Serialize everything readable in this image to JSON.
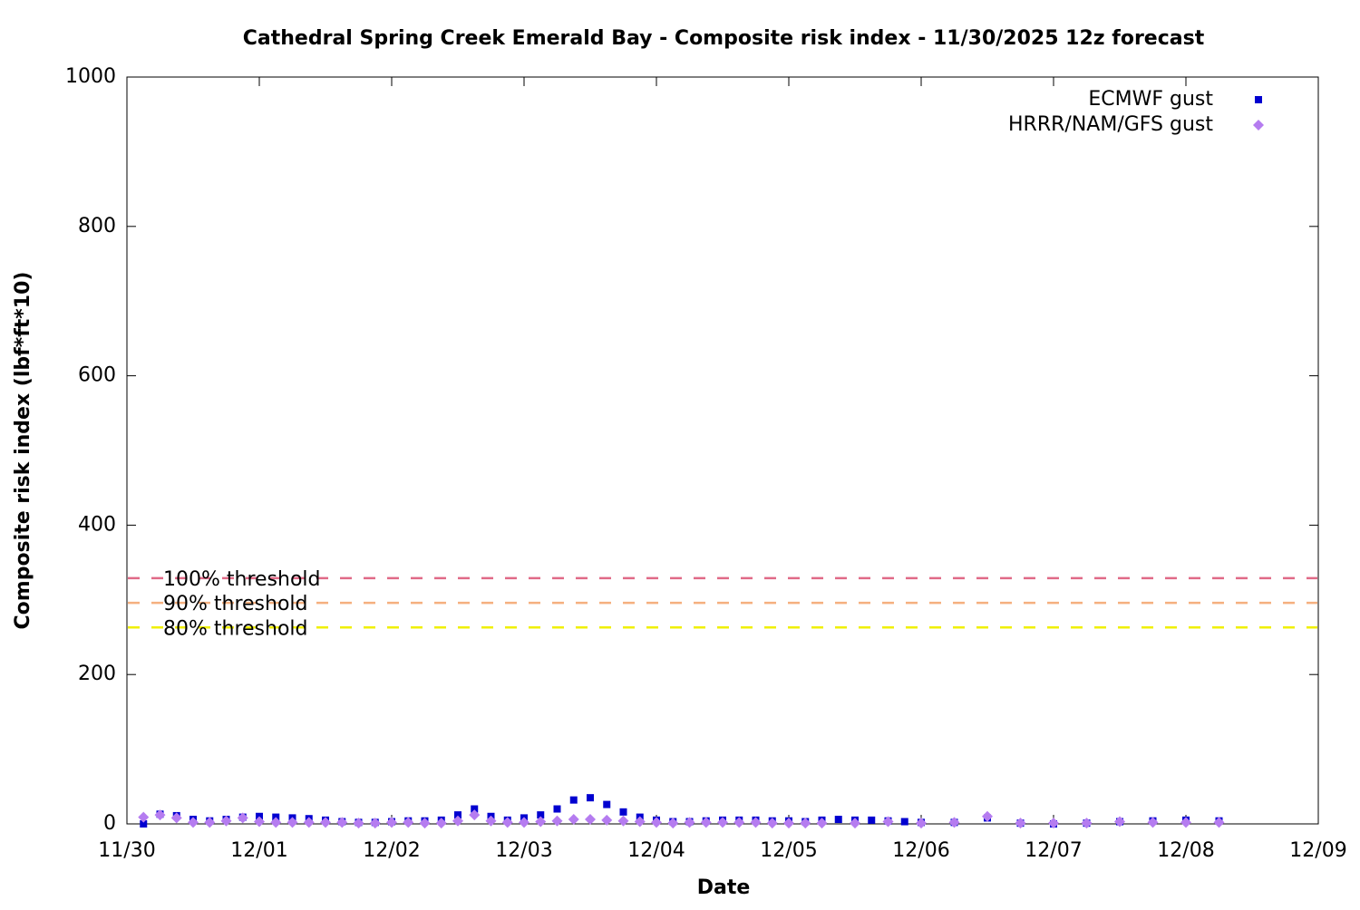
{
  "chart_data": {
    "type": "scatter",
    "title": "Cathedral Spring Creek Emerald Bay - Composite risk index - 11/30/2025 12z forecast",
    "xlabel": "Date",
    "ylabel": "Composite risk index (lbf*ft*10)",
    "xlim": [
      0,
      9
    ],
    "ylim": [
      0,
      1000
    ],
    "xticks": [
      {
        "value": 0,
        "label": "11/30"
      },
      {
        "value": 1,
        "label": "12/01"
      },
      {
        "value": 2,
        "label": "12/02"
      },
      {
        "value": 3,
        "label": "12/03"
      },
      {
        "value": 4,
        "label": "12/04"
      },
      {
        "value": 5,
        "label": "12/05"
      },
      {
        "value": 6,
        "label": "12/06"
      },
      {
        "value": 7,
        "label": "12/07"
      },
      {
        "value": 8,
        "label": "12/08"
      },
      {
        "value": 9,
        "label": "12/09"
      }
    ],
    "yticks": [
      0,
      200,
      400,
      600,
      800,
      1000
    ],
    "grid": false,
    "legend": "top-right",
    "thresholds": [
      {
        "label": "100% threshold",
        "value": 329,
        "color": "#e06a87"
      },
      {
        "label": "90% threshold",
        "value": 296,
        "color": "#f5b07f"
      },
      {
        "label": "80% threshold",
        "value": 263,
        "color": "#f0f000"
      }
    ],
    "series": [
      {
        "name": "ECMWF gust",
        "color": "#0000d0",
        "marker": "square",
        "x": [
          0.125,
          0.25,
          0.375,
          0.5,
          0.625,
          0.75,
          0.875,
          1.0,
          1.125,
          1.25,
          1.375,
          1.5,
          1.625,
          1.75,
          1.875,
          2.0,
          2.125,
          2.25,
          2.375,
          2.5,
          2.625,
          2.75,
          2.875,
          3.0,
          3.125,
          3.25,
          3.375,
          3.5,
          3.625,
          3.75,
          3.875,
          4.0,
          4.125,
          4.25,
          4.375,
          4.5,
          4.625,
          4.75,
          4.875,
          5.0,
          5.125,
          5.25,
          5.375,
          5.5,
          5.625,
          5.75,
          5.875,
          6.0,
          6.25,
          6.5,
          6.75,
          7.0,
          7.25,
          7.5,
          7.75,
          8.0,
          8.25
        ],
        "values": [
          0,
          13,
          11,
          6,
          4,
          6,
          9,
          10,
          9,
          8,
          7,
          5,
          3,
          2,
          2,
          3,
          4,
          4,
          5,
          12,
          20,
          10,
          5,
          8,
          12,
          20,
          32,
          35,
          26,
          16,
          9,
          5,
          3,
          3,
          4,
          5,
          5,
          5,
          4,
          4,
          3,
          5,
          6,
          5,
          5,
          4,
          3,
          2,
          2,
          8,
          1,
          0,
          1,
          3,
          4,
          5,
          4
        ]
      },
      {
        "name": "HRRR/NAM/GFS gust",
        "color": "#b57cf0",
        "marker": "diamond",
        "x": [
          0.125,
          0.25,
          0.375,
          0.5,
          0.625,
          0.75,
          0.875,
          1.0,
          1.125,
          1.25,
          1.375,
          1.5,
          1.625,
          1.75,
          1.875,
          2.0,
          2.125,
          2.25,
          2.375,
          2.5,
          2.625,
          2.75,
          2.875,
          3.0,
          3.125,
          3.25,
          3.375,
          3.5,
          3.625,
          3.75,
          3.875,
          4.0,
          4.125,
          4.25,
          4.375,
          4.5,
          4.625,
          4.75,
          4.875,
          5.0,
          5.125,
          5.25,
          5.5,
          5.75,
          6.0,
          6.25,
          6.5,
          6.75,
          7.0,
          7.25,
          7.5,
          7.75,
          8.0,
          8.25
        ],
        "values": [
          9,
          12,
          8,
          2,
          2,
          4,
          8,
          3,
          2,
          2,
          2,
          2,
          2,
          1,
          1,
          2,
          2,
          1,
          1,
          4,
          12,
          4,
          2,
          2,
          3,
          4,
          6,
          6,
          5,
          4,
          3,
          2,
          1,
          2,
          2,
          2,
          2,
          2,
          1,
          1,
          1,
          1,
          1,
          3,
          1,
          2,
          10,
          1,
          1,
          1,
          3,
          2,
          2,
          2
        ]
      }
    ]
  }
}
